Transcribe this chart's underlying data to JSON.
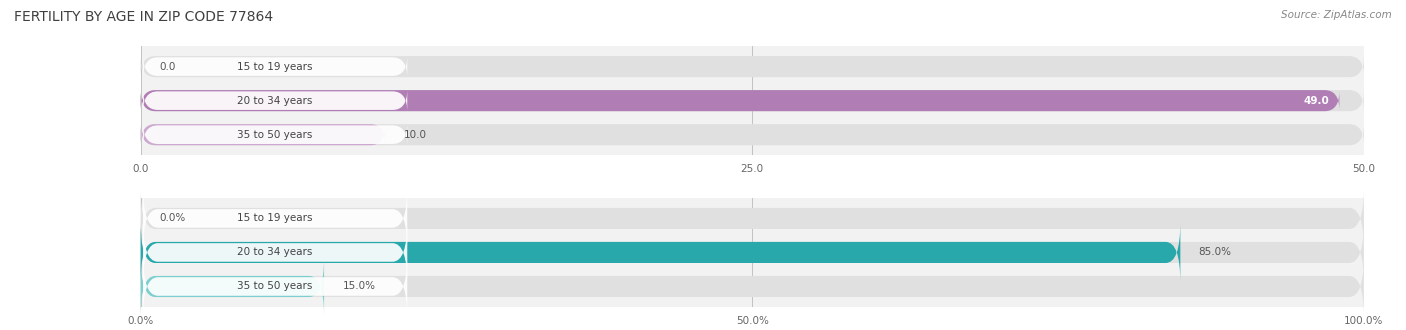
{
  "title": "FERTILITY BY AGE IN ZIP CODE 77864",
  "source": "Source: ZipAtlas.com",
  "top_chart": {
    "categories": [
      "15 to 19 years",
      "20 to 34 years",
      "35 to 50 years"
    ],
    "values": [
      0.0,
      49.0,
      10.0
    ],
    "xlim": [
      0,
      50
    ],
    "xticks": [
      0.0,
      25.0,
      50.0
    ],
    "xtick_labels": [
      "0.0",
      "25.0",
      "50.0"
    ],
    "bar_color_full": "#b07db5",
    "bar_color_light": "#cda8d0"
  },
  "bottom_chart": {
    "categories": [
      "15 to 19 years",
      "20 to 34 years",
      "35 to 50 years"
    ],
    "values": [
      0.0,
      85.0,
      15.0
    ],
    "xlim": [
      0,
      100
    ],
    "xticks": [
      0.0,
      50.0,
      100.0
    ],
    "xtick_labels": [
      "0.0%",
      "50.0%",
      "100.0%"
    ],
    "bar_color_full": "#29a8ab",
    "bar_color_light": "#7dcfcf"
  },
  "bg_color": "#f2f2f2",
  "bar_bg_color": "#e0e0e0",
  "title_font_size": 10,
  "source_font_size": 7.5,
  "category_font_size": 7.5,
  "value_font_size": 7.5,
  "tick_font_size": 7.5
}
